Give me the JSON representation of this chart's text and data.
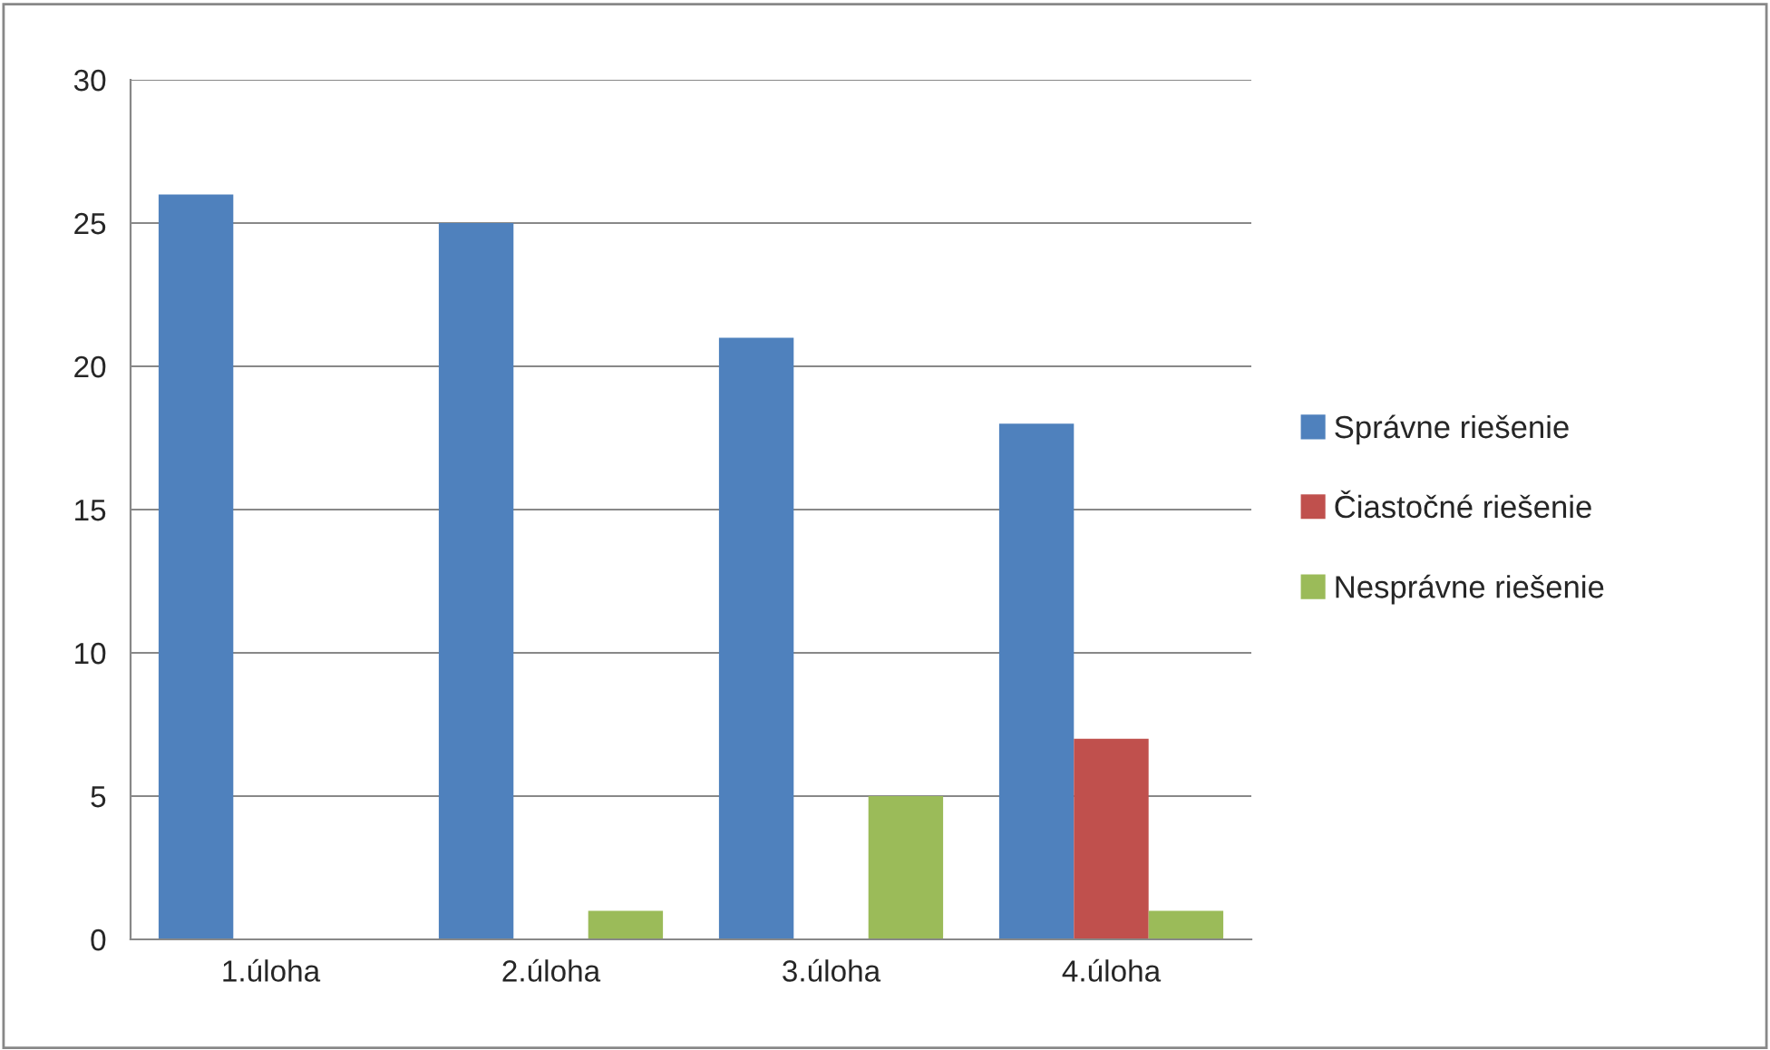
{
  "chart_data": {
    "type": "bar",
    "categories": [
      "1.úloha",
      "2.úloha",
      "3.úloha",
      "4.úloha"
    ],
    "series": [
      {
        "name": "Správne riešenie",
        "color": "#4f81bd",
        "values": [
          26,
          25,
          21,
          18
        ]
      },
      {
        "name": "Čiastočné riešenie",
        "color": "#c0504d",
        "values": [
          0,
          0,
          0,
          7
        ]
      },
      {
        "name": "Nesprávne riešenie",
        "color": "#9bbb59",
        "values": [
          0,
          1,
          5,
          1
        ]
      }
    ],
    "ylim": [
      0,
      30
    ],
    "yticks": [
      0,
      5,
      10,
      15,
      20,
      25,
      30
    ],
    "grid": "y",
    "legend": "right"
  }
}
